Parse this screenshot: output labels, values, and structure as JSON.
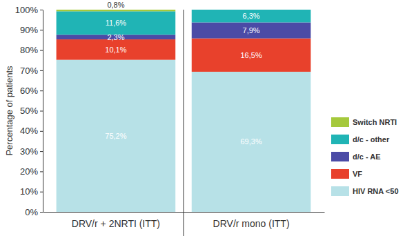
{
  "chart_data": {
    "type": "bar",
    "stacked": true,
    "data_labels": true,
    "legend": "right",
    "y_label": "Percentage of patients",
    "categories": [
      "DRV/r + 2NRTI (ITT)",
      "DRV/r mono (ITT)"
    ],
    "series": [
      {
        "name": "HIV RNA <50",
        "color": "#b7e1e7",
        "values": [
          75.2,
          69.3
        ],
        "value_labels": [
          "75,2%",
          "69,3%"
        ]
      },
      {
        "name": "VF",
        "color": "#e8412c",
        "values": [
          10.1,
          16.5
        ],
        "value_labels": [
          "10,1%",
          "16,5%"
        ]
      },
      {
        "name": "d/c - AE",
        "color": "#4b4ba6",
        "values": [
          2.3,
          7.9
        ],
        "value_labels": [
          "2,3%",
          "7,9%"
        ]
      },
      {
        "name": "d/c - other",
        "color": "#20b4b5",
        "values": [
          11.6,
          6.3
        ],
        "value_labels": [
          "11,6%",
          "6,3%"
        ]
      },
      {
        "name": "Switch NRTI",
        "color": "#a5c93c",
        "values": [
          0.8,
          null
        ],
        "value_labels": [
          "0,8%",
          null
        ]
      }
    ],
    "ylim": [
      0,
      100
    ],
    "yticks": [
      {
        "value": 0,
        "label": "0%"
      },
      {
        "value": 10,
        "label": "10%"
      },
      {
        "value": 20,
        "label": "20%"
      },
      {
        "value": 30,
        "label": "30%"
      },
      {
        "value": 40,
        "label": "40%"
      },
      {
        "value": 50,
        "label": "50%"
      },
      {
        "value": 60,
        "label": "60%"
      },
      {
        "value": 70,
        "label": "70%"
      },
      {
        "value": 80,
        "label": "80%"
      },
      {
        "value": 90,
        "label": "90%"
      },
      {
        "value": 100,
        "label": "100%"
      }
    ]
  }
}
